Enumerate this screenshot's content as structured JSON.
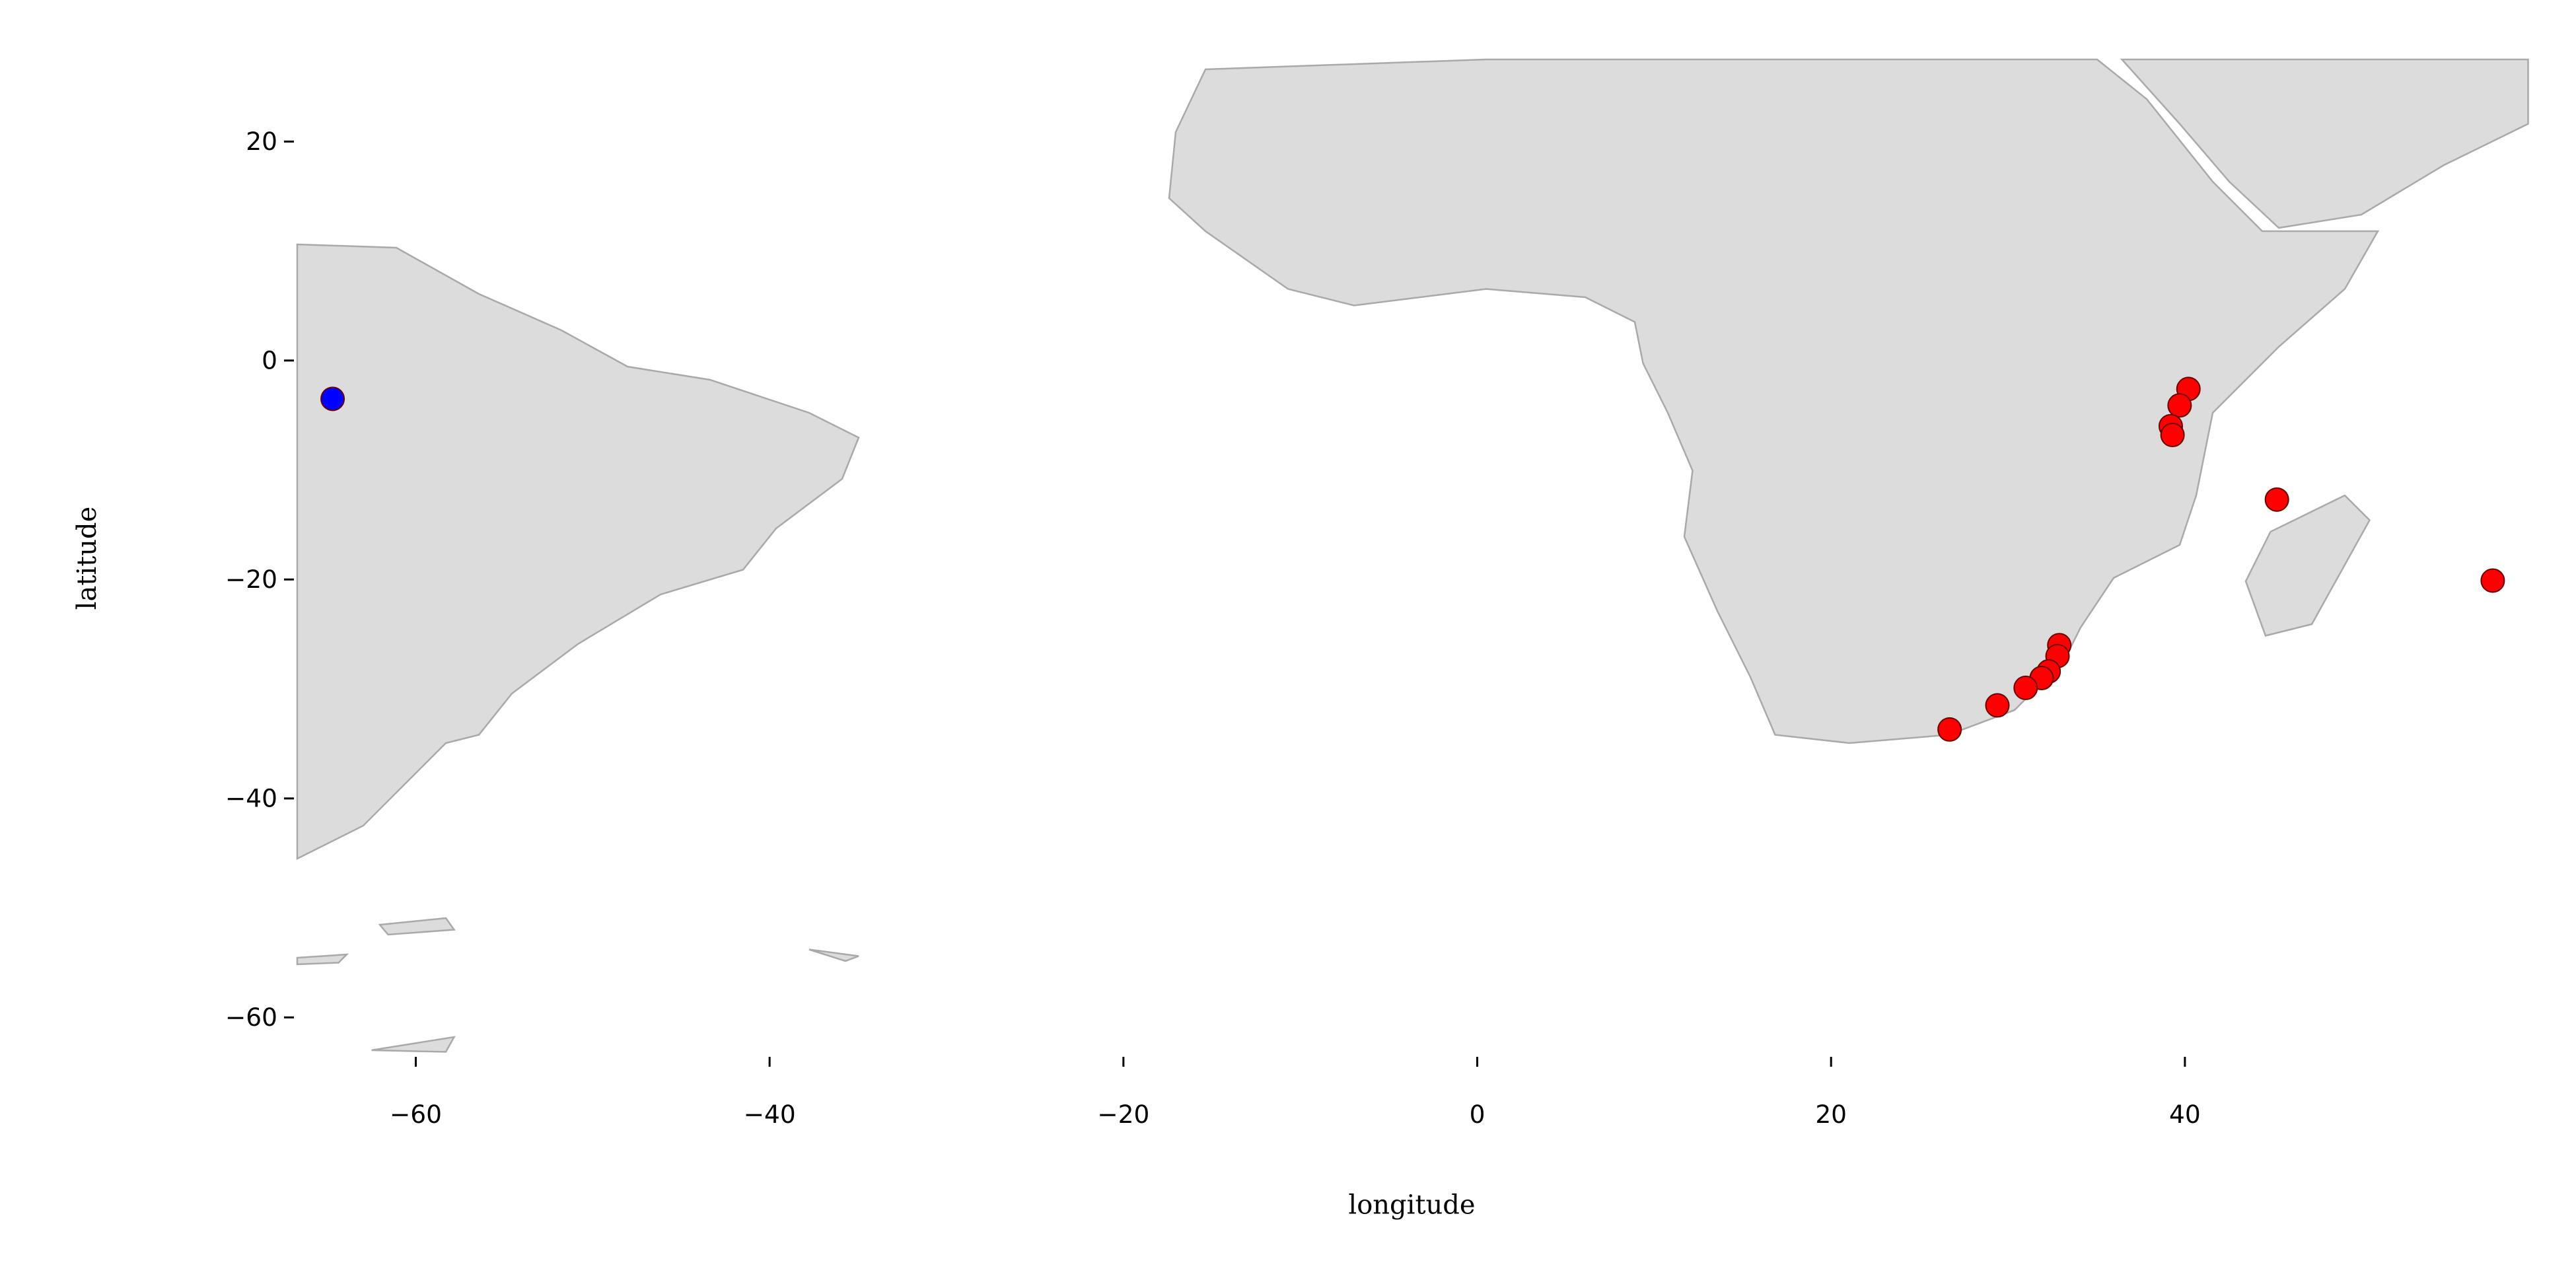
{
  "chart_data": {
    "type": "scatter",
    "x_label": "longitude",
    "y_label": "latitude",
    "xlim": [
      -66.7,
      59.4
    ],
    "ylim": [
      -63.6,
      27.5
    ],
    "xticks": [
      {
        "value": -60,
        "label": "−60"
      },
      {
        "value": -40,
        "label": "−40"
      },
      {
        "value": -20,
        "label": "−20"
      },
      0,
      20,
      40
    ],
    "yticks": [
      20,
      0,
      {
        "value": -20,
        "label": "−20"
      },
      {
        "value": -40,
        "label": "−40"
      },
      {
        "value": -60,
        "label": "−60"
      }
    ],
    "series": [
      {
        "color": "#0000ff",
        "x": [
          -64.7
        ],
        "y": [
          -3.5
        ]
      },
      {
        "color": "#ff0000",
        "x": [
          40.2,
          39.7,
          39.2,
          39.3,
          45.2,
          57.4,
          32.9,
          32.8,
          32.3,
          31.9,
          31.0,
          29.4,
          26.7
        ],
        "y": [
          -2.6,
          -4.1,
          -6.0,
          -6.8,
          -12.7,
          -20.1,
          -26.0,
          -27.0,
          -28.4,
          -29.0,
          -29.9,
          -31.5,
          -33.7
        ]
      }
    ]
  }
}
